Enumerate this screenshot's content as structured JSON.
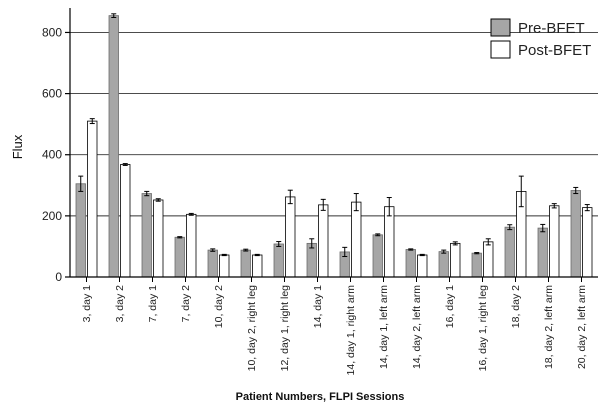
{
  "chart_data": {
    "type": "bar",
    "title": "",
    "xlabel": "Patient Numbers, FLPI Sessions",
    "ylabel": "Flux",
    "ylim": [
      0,
      880
    ],
    "yticks": [
      0,
      200,
      400,
      600,
      800
    ],
    "grid": "horizontal at 200, 400, 600, 800",
    "legend_position": "top-right",
    "categories": [
      "3, day 1",
      "3, day 2",
      "7, day 1",
      "7, day 2",
      "10, day 2",
      "10, day 2, right leg",
      "12, day 1, right leg",
      "14, day 1",
      "14, day 1, right arm",
      "14, day 1, left arm",
      "14, day 2, left arm",
      "16, day 1",
      "16, day 1, right leg",
      "18, day 2",
      "18, day 2, left arm",
      "20, day 2, left arm"
    ],
    "series": [
      {
        "name": "Pre-BFET",
        "color": "#a6a6a6",
        "values": [
          305,
          855,
          273,
          130,
          88,
          88,
          108,
          110,
          82,
          138,
          90,
          83,
          78,
          163,
          160,
          283
        ],
        "errors": [
          25,
          6,
          7,
          2,
          4,
          3,
          8,
          15,
          15,
          3,
          2,
          5,
          2,
          8,
          12,
          10
        ]
      },
      {
        "name": "Post-BFET",
        "color": "#ffffff",
        "values": [
          510,
          368,
          252,
          205,
          72,
          72,
          262,
          236,
          245,
          230,
          72,
          110,
          115,
          280,
          233,
          227
        ],
        "errors": [
          8,
          3,
          4,
          3,
          2,
          2,
          22,
          18,
          28,
          30,
          2,
          5,
          10,
          50,
          7,
          10
        ]
      }
    ]
  }
}
